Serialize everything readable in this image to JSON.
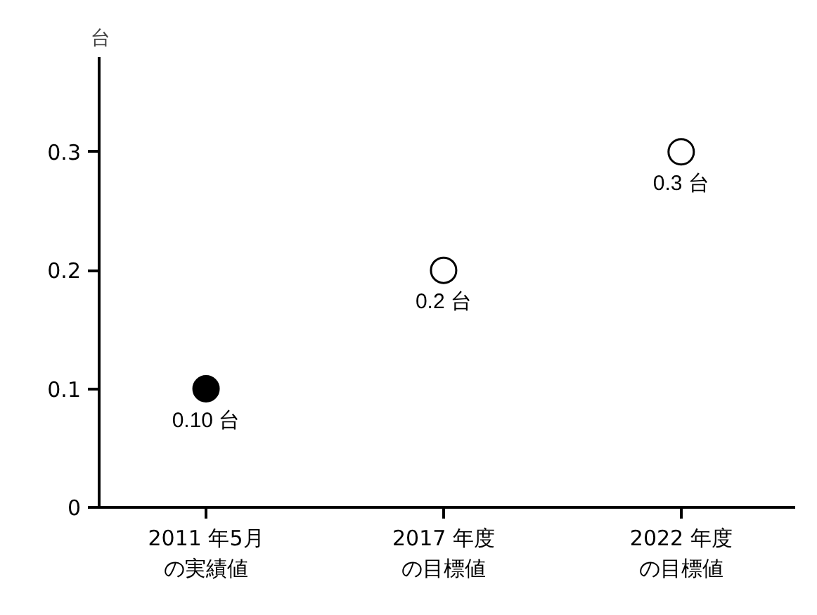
{
  "chart_data": {
    "type": "scatter",
    "ylabel": "台",
    "categories": [
      "2011 年5月の実績値",
      "2017 年度の目標値",
      "2022 年度の目標値"
    ],
    "values": [
      0.1,
      0.2,
      0.3
    ],
    "colors": [
      "#000000",
      "#ffffff",
      "#ffffff"
    ],
    "value_labels": [
      "0.10 台",
      "0.2 台",
      "0.3 台"
    ],
    "ylim": [
      0,
      0.38
    ],
    "yticks": [
      0,
      0.1,
      0.2,
      0.3
    ],
    "marker": "circle",
    "grid": false
  }
}
